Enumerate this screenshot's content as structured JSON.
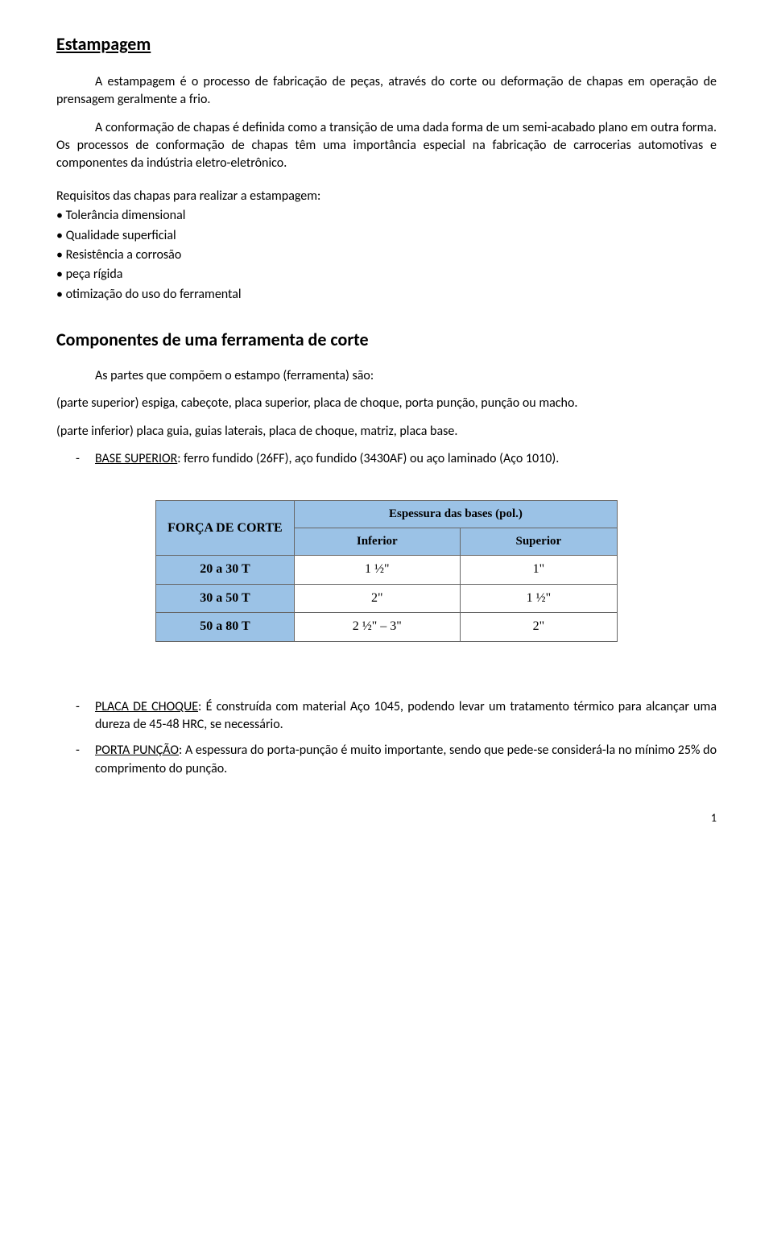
{
  "h1": "Estampagem",
  "p1": "A estampagem é o processo de fabricação de peças, através do corte ou deformação de chapas em operação de prensagem geralmente a frio.",
  "p2": "A conformação de chapas é definida como a transição de uma dada forma de um semi-acabado plano em outra forma. Os processos de conformação de chapas têm uma importância especial na fabricação de carrocerias automotivas e componentes da indústria eletro-eletrônico.",
  "req_intro": "Requisitos das chapas para realizar a estampagem:",
  "bullets": [
    "• Tolerância dimensional",
    "• Qualidade superficial",
    "• Resistência a corrosão",
    "• peça rígida",
    "• otimização do uso do ferramental"
  ],
  "h2": "Componentes de uma ferramenta de corte",
  "p3": "As partes que compõem o estampo (ferramenta) são:",
  "p4": "(parte superior) espiga, cabeçote, placa superior, placa de choque, porta punção, punção ou macho.",
  "p5": "(parte inferior) placa guia, guias laterais, placa de choque, matriz, placa base.",
  "dash1_label": "BASE SUPERIOR",
  "dash1_rest": ": ferro fundido (26FF), aço fundido (3430AF) ou aço laminado (Aço 1010).",
  "dash2_label": "PLACA DE CHOQUE",
  "dash2_rest": ": É construída com material Aço 1045, podendo levar um tratamento térmico para alcançar uma dureza de 45-48 HRC, se necessário.",
  "dash3_label": "PORTA PUNÇÃO",
  "dash3_rest": ": A espessura do porta-punção é muito importante, sendo que pede-se considerá-la no mínimo 25% do comprimento do punção.",
  "table": {
    "header_bg": "#9bc2e6",
    "row_bg_alt": "#ffffff",
    "corner": "FORÇA DE CORTE",
    "span_header": "Espessura das bases (pol.)",
    "sub_headers": [
      "Inferior",
      "Superior"
    ],
    "rows": [
      {
        "force": "20 a 30 T",
        "inf": "1 ½\"",
        "sup": "1\""
      },
      {
        "force": "30 a 50 T",
        "inf": "2\"",
        "sup": "1 ½\""
      },
      {
        "force": "50 a 80 T",
        "inf": "2 ½\" – 3\"",
        "sup": "2\""
      }
    ]
  },
  "page_num": "1"
}
